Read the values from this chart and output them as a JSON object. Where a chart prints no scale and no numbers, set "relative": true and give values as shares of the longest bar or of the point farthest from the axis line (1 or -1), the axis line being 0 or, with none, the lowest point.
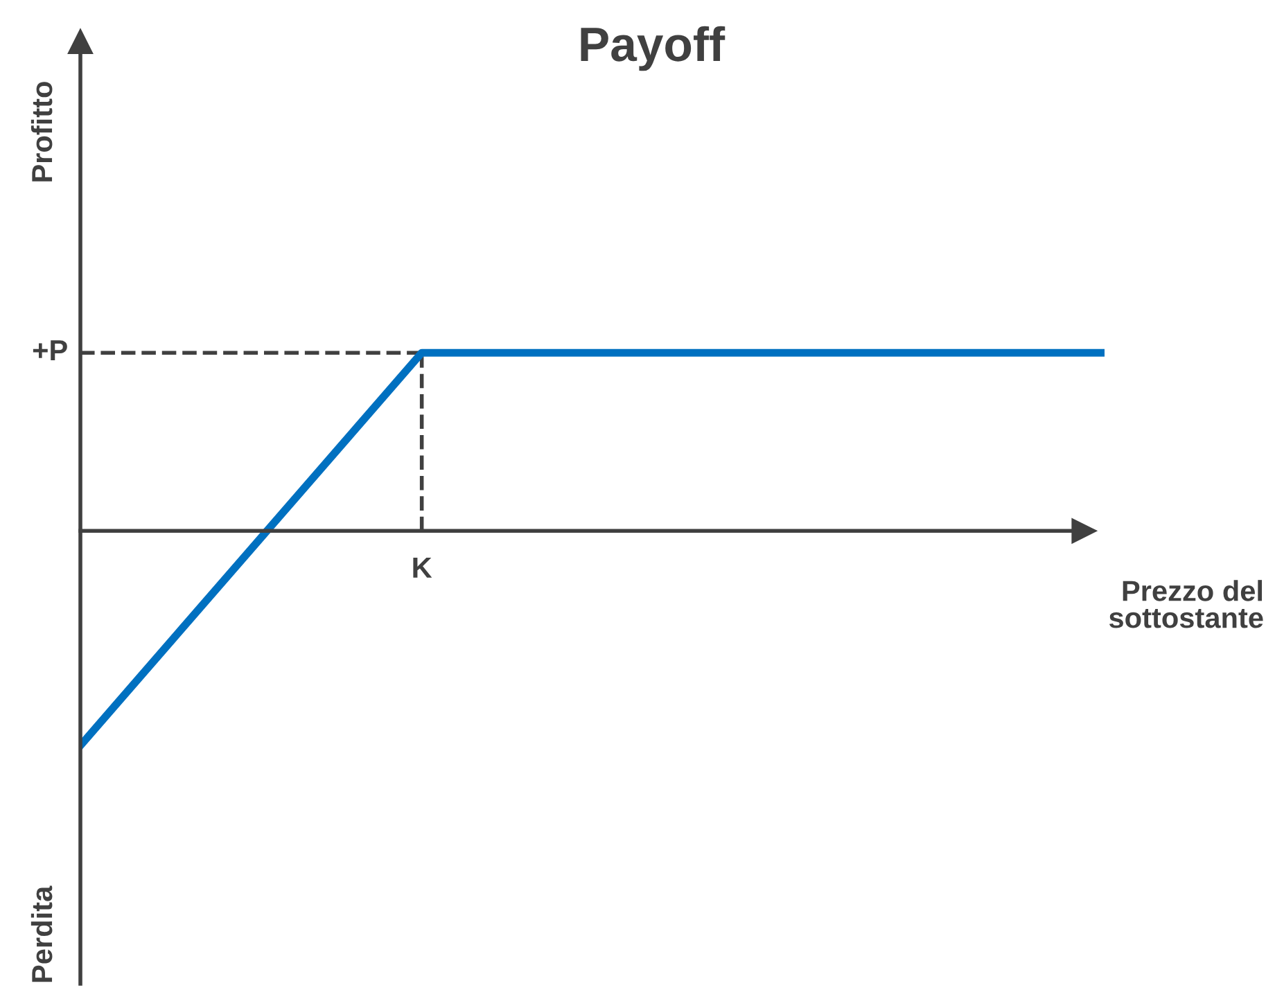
{
  "chart_data": {
    "type": "line",
    "title": "Payoff",
    "xlabel": "Prezzo del\nsottostante",
    "annotations": [
      "Profitto",
      "Perdita"
    ],
    "relative": true,
    "categories": [
      null,
      null,
      null,
      null
    ],
    "series": [
      {
        "color": "#0070c0",
        "values": [
          -1,
          0.83,
          0.83,
          0.83
        ]
      }
    ],
    "ref_lines": [
      {
        "axis": "y",
        "value": 0.83,
        "label": "+P",
        "line_style": "dashed",
        "color": "#404040"
      },
      {
        "axis": "x",
        "label": "K",
        "line_style": "dashed",
        "color": "#404040"
      }
    ],
    "marker": "none",
    "line_style": "solid"
  }
}
